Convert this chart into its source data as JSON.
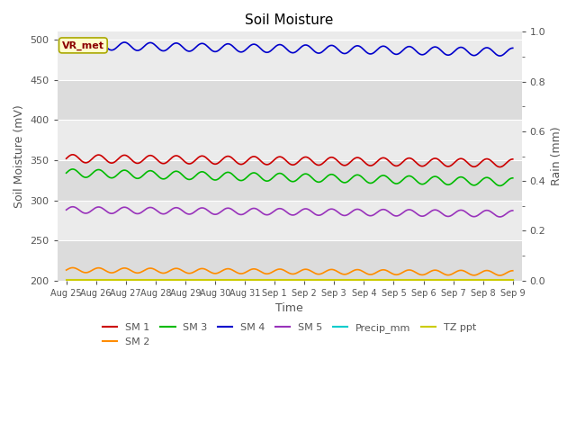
{
  "title": "Soil Moisture",
  "xlabel": "Time",
  "ylabel_left": "Soil Moisture (mV)",
  "ylabel_right": "Rain (mm)",
  "ylim_left": [
    200,
    510
  ],
  "ylim_right": [
    0.0,
    1.0
  ],
  "yticks_left": [
    200,
    250,
    300,
    350,
    400,
    450,
    500
  ],
  "yticks_right": [
    0.0,
    0.2,
    0.4,
    0.6,
    0.8,
    1.0
  ],
  "bg_color_dark": "#dcdcdc",
  "bg_color_light": "#ebebeb",
  "annotation_text": "VR_met",
  "lines": {
    "SM1": {
      "color": "#cc0000",
      "base": 352,
      "trend": -0.38,
      "amp": 5,
      "freq": 1.15,
      "label": "SM 1"
    },
    "SM2": {
      "color": "#ff8c00",
      "base": 213,
      "trend": -0.25,
      "amp": 3,
      "freq": 1.15,
      "label": "SM 2"
    },
    "SM3": {
      "color": "#00bb00",
      "base": 334,
      "trend": -0.75,
      "amp": 5,
      "freq": 1.15,
      "label": "SM 3"
    },
    "SM4": {
      "color": "#0000cc",
      "base": 493,
      "trend": -0.55,
      "amp": 5,
      "freq": 1.15,
      "label": "SM 4"
    },
    "SM5": {
      "color": "#9933bb",
      "base": 288,
      "trend": -0.32,
      "amp": 4,
      "freq": 1.15,
      "label": "SM 5"
    },
    "Precip": {
      "color": "#00cccc",
      "base": 201,
      "trend": 0,
      "amp": 0,
      "freq": 1.0,
      "label": "Precip_mm"
    },
    "TZppt": {
      "color": "#cccc00",
      "base": 200,
      "trend": 0,
      "amp": 0,
      "freq": 1.0,
      "label": "TZ ppt"
    }
  },
  "font_color": "#555555",
  "tick_labels": [
    "Aug 25",
    "Aug 26",
    "Aug 27",
    "Aug 28",
    "Aug 29",
    "Aug 30",
    "Aug 31",
    "Sep 1",
    "Sep 2",
    "Sep 3",
    "Sep 4",
    "Sep 5",
    "Sep 6",
    "Sep 7",
    "Sep 8",
    "Sep 9"
  ]
}
